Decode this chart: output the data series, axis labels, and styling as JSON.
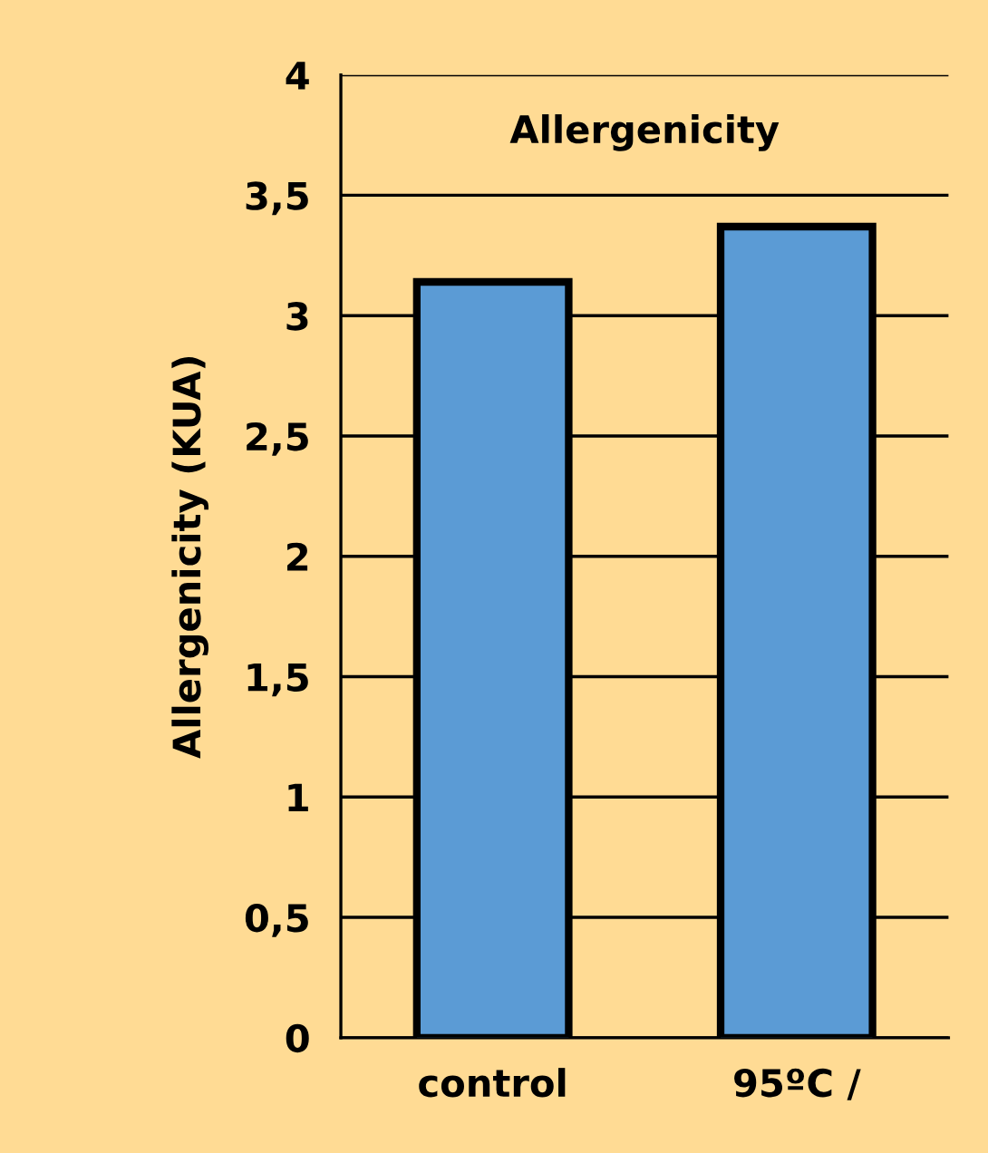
{
  "chart_data": {
    "type": "bar",
    "title": "Allergenicity",
    "ylabel": "Allergenicity (KUA)",
    "categories": [
      "control",
      "95ºC /"
    ],
    "values": [
      3.14,
      3.37
    ],
    "color": "#5b9bd5",
    "ylim": [
      0,
      4
    ],
    "yticks": [
      0,
      {
        "value": 0.5,
        "label": "0,5"
      },
      1,
      {
        "value": 1.5,
        "label": "1,5"
      },
      2,
      {
        "value": 2.5,
        "label": "2,5"
      },
      3,
      {
        "value": 3.5,
        "label": "3,5"
      },
      4
    ],
    "grid": "y",
    "legend": false
  }
}
